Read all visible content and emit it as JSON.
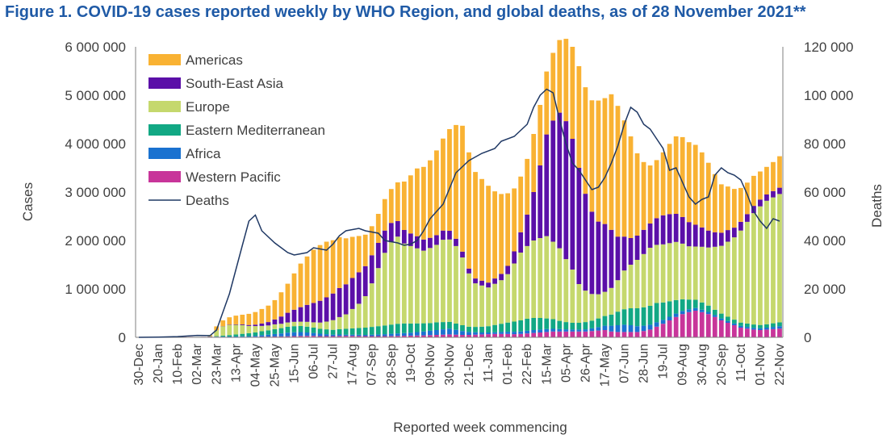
{
  "figure_title": "Figure 1. COVID-19 cases reported weekly by WHO Region, and global deaths, as of 28 November 2021**",
  "chart_data": {
    "type": "bar",
    "stacked": true,
    "secondary_type": "line",
    "xlabel": "Reported week commencing",
    "ylabel": "Cases",
    "y2label": "Deaths",
    "ylim": [
      0,
      6000000
    ],
    "y2lim": [
      0,
      120000
    ],
    "y_ticks": [
      "0",
      "1 000 000",
      "2 000 000",
      "3 000 000",
      "4 000 000",
      "5 000 000",
      "6 000 000"
    ],
    "y2_ticks": [
      "0",
      "20 000",
      "40 000",
      "60 000",
      "80 000",
      "100 000",
      "120 000"
    ],
    "x_tick_labels": [
      "30-Dec",
      "20-Jan",
      "10-Feb",
      "02-Mar",
      "23-Mar",
      "13-Apr",
      "04-May",
      "25-May",
      "15-Jun",
      "06-Jul",
      "27-Jul",
      "17-Aug",
      "07-Sep",
      "28-Sep",
      "19-Oct",
      "09-Nov",
      "30-Nov",
      "21-Dec",
      "11-Jan",
      "01-Feb",
      "22-Feb",
      "15-Mar",
      "05-Apr",
      "26-Apr",
      "17-May",
      "07-Jun",
      "28-Jun",
      "19-Jul",
      "09-Aug",
      "30-Aug",
      "20-Sep",
      "11-Oct",
      "01-Nov",
      "22-Nov"
    ],
    "legend_position": "top-left",
    "grid": false,
    "colors": {
      "Americas": "#F9B233",
      "South-East Asia": "#5B0FA8",
      "Europe": "#C5D86D",
      "Eastern Mediterranean": "#12A884",
      "Africa": "#1A72D0",
      "Western Pacific": "#C8359A",
      "Deaths": "#1F3864"
    },
    "legend": [
      "Americas",
      "South-East Asia",
      "Europe",
      "Eastern Mediterranean",
      "Africa",
      "Western Pacific",
      "Deaths"
    ],
    "weeks": 100,
    "series": [
      {
        "name": "Western Pacific",
        "values": [
          0,
          0,
          2000,
          3000,
          5000,
          10000,
          15000,
          12000,
          10000,
          8000,
          10000,
          15000,
          12000,
          10000,
          8000,
          8000,
          10000,
          10000,
          12000,
          15000,
          15000,
          18000,
          20000,
          22000,
          25000,
          28000,
          30000,
          30000,
          25000,
          25000,
          25000,
          28000,
          30000,
          30000,
          28000,
          25000,
          25000,
          25000,
          25000,
          28000,
          30000,
          32000,
          35000,
          38000,
          40000,
          45000,
          50000,
          55000,
          60000,
          55000,
          50000,
          50000,
          55000,
          60000,
          65000,
          70000,
          70000,
          70000,
          65000,
          70000,
          80000,
          90000,
          100000,
          110000,
          120000,
          120000,
          120000,
          120000,
          120000,
          120000,
          130000,
          140000,
          150000,
          120000,
          110000,
          110000,
          110000,
          110000,
          130000,
          160000,
          220000,
          280000,
          350000,
          420000,
          480000,
          520000,
          550000,
          520000,
          480000,
          420000,
          350000,
          300000,
          250000,
          200000,
          180000,
          160000,
          150000,
          160000,
          170000,
          180000
        ]
      },
      {
        "name": "Africa",
        "values": [
          0,
          0,
          0,
          0,
          0,
          0,
          0,
          0,
          0,
          0,
          0,
          0,
          2000,
          5000,
          8000,
          10000,
          12000,
          15000,
          20000,
          30000,
          40000,
          50000,
          60000,
          75000,
          80000,
          80000,
          70000,
          60000,
          50000,
          40000,
          30000,
          30000,
          25000,
          25000,
          25000,
          25000,
          30000,
          35000,
          40000,
          45000,
          50000,
          55000,
          60000,
          70000,
          80000,
          90000,
          100000,
          110000,
          120000,
          100000,
          80000,
          60000,
          50000,
          40000,
          35000,
          35000,
          40000,
          45000,
          50000,
          50000,
          55000,
          60000,
          60000,
          60000,
          55000,
          50000,
          45000,
          40000,
          40000,
          45000,
          55000,
          70000,
          90000,
          120000,
          140000,
          150000,
          140000,
          120000,
          110000,
          100000,
          90000,
          80000,
          75000,
          70000,
          65000,
          60000,
          55000,
          50000,
          45000,
          40000,
          40000,
          35000,
          35000,
          35000,
          35000,
          35000,
          35000,
          40000,
          45000,
          50000
        ]
      },
      {
        "name": "Eastern Mediterranean",
        "values": [
          0,
          0,
          0,
          0,
          0,
          0,
          0,
          0,
          0,
          0,
          0,
          2000,
          10000,
          20000,
          30000,
          40000,
          50000,
          60000,
          70000,
          80000,
          90000,
          100000,
          110000,
          120000,
          125000,
          125000,
          120000,
          110000,
          100000,
          100000,
          100000,
          110000,
          120000,
          130000,
          140000,
          150000,
          160000,
          170000,
          180000,
          190000,
          200000,
          200000,
          190000,
          180000,
          170000,
          160000,
          160000,
          150000,
          140000,
          130000,
          120000,
          110000,
          110000,
          120000,
          130000,
          150000,
          170000,
          190000,
          210000,
          230000,
          250000,
          250000,
          240000,
          220000,
          200000,
          170000,
          150000,
          140000,
          140000,
          150000,
          160000,
          180000,
          200000,
          230000,
          280000,
          320000,
          350000,
          370000,
          380000,
          390000,
          400000,
          360000,
          320000,
          280000,
          240000,
          200000,
          170000,
          150000,
          130000,
          110000,
          100000,
          90000,
          80000,
          70000,
          70000,
          70000,
          70000,
          70000,
          75000,
          80000
        ]
      },
      {
        "name": "Europe",
        "values": [
          0,
          0,
          0,
          0,
          0,
          0,
          0,
          0,
          0,
          0,
          0,
          10000,
          120000,
          190000,
          210000,
          200000,
          180000,
          150000,
          130000,
          110000,
          100000,
          100000,
          90000,
          90000,
          90000,
          90000,
          100000,
          110000,
          130000,
          160000,
          200000,
          250000,
          300000,
          400000,
          500000,
          650000,
          900000,
          1200000,
          1500000,
          1700000,
          1800000,
          1650000,
          1600000,
          1550000,
          1500000,
          1550000,
          1600000,
          1700000,
          1700000,
          1600000,
          1400000,
          1100000,
          900000,
          850000,
          800000,
          850000,
          900000,
          1000000,
          1200000,
          1400000,
          1500000,
          1600000,
          1650000,
          1700000,
          1600000,
          1500000,
          1300000,
          1100000,
          800000,
          650000,
          550000,
          500000,
          500000,
          550000,
          650000,
          800000,
          900000,
          1000000,
          1100000,
          1200000,
          1200000,
          1200000,
          1200000,
          1200000,
          1150000,
          1100000,
          1100000,
          1150000,
          1200000,
          1300000,
          1400000,
          1550000,
          1700000,
          1900000,
          2100000,
          2300000,
          2450000,
          2550000,
          2600000,
          2650000
        ]
      },
      {
        "name": "South-East Asia",
        "values": [
          0,
          0,
          0,
          0,
          0,
          0,
          0,
          0,
          0,
          0,
          0,
          0,
          2000,
          5000,
          8000,
          10000,
          15000,
          20000,
          30000,
          50000,
          70000,
          100000,
          150000,
          200000,
          250000,
          300000,
          350000,
          400000,
          450000,
          500000,
          550000,
          600000,
          620000,
          640000,
          650000,
          620000,
          580000,
          520000,
          460000,
          400000,
          320000,
          280000,
          260000,
          250000,
          230000,
          210000,
          200000,
          190000,
          180000,
          150000,
          120000,
          100000,
          100000,
          100000,
          100000,
          110000,
          130000,
          170000,
          250000,
          420000,
          650000,
          1000000,
          1500000,
          2100000,
          2500000,
          2800000,
          2850000,
          2700000,
          2400000,
          2000000,
          1700000,
          1500000,
          1400000,
          1200000,
          900000,
          700000,
          550000,
          500000,
          500000,
          500000,
          550000,
          600000,
          600000,
          580000,
          550000,
          500000,
          450000,
          400000,
          350000,
          300000,
          270000,
          240000,
          200000,
          180000,
          160000,
          150000,
          140000,
          130000,
          130000,
          130000
        ]
      },
      {
        "name": "Americas",
        "values": [
          0,
          0,
          0,
          0,
          0,
          0,
          0,
          0,
          0,
          0,
          0,
          20000,
          80000,
          120000,
          150000,
          180000,
          200000,
          230000,
          260000,
          300000,
          340000,
          400000,
          500000,
          600000,
          750000,
          900000,
          1000000,
          1100000,
          1150000,
          1150000,
          1100000,
          1050000,
          950000,
          850000,
          750000,
          650000,
          600000,
          600000,
          650000,
          700000,
          800000,
          1000000,
          1200000,
          1400000,
          1500000,
          1600000,
          1750000,
          1900000,
          2100000,
          2350000,
          2600000,
          2400000,
          2200000,
          2100000,
          2000000,
          1800000,
          1650000,
          1500000,
          1300000,
          1150000,
          1150000,
          1200000,
          1250000,
          1300000,
          1400000,
          1500000,
          1700000,
          1900000,
          2100000,
          2200000,
          2300000,
          2500000,
          2600000,
          2800000,
          2700000,
          2400000,
          2100000,
          1700000,
          1400000,
          1200000,
          1200000,
          1300000,
          1450000,
          1600000,
          1650000,
          1650000,
          1650000,
          1550000,
          1400000,
          1200000,
          1000000,
          900000,
          800000,
          700000,
          650000,
          620000,
          580000,
          570000,
          600000,
          650000
        ]
      }
    ],
    "deaths": [
      0,
      0,
      0,
      0,
      0,
      0,
      0,
      0,
      0,
      0,
      0,
      0,
      0,
      0,
      0,
      0,
      0,
      0,
      0,
      0,
      0,
      0,
      0,
      0,
      0,
      0,
      0,
      0,
      0,
      0,
      0,
      0,
      0,
      0,
      0,
      0,
      0,
      0,
      0,
      0,
      0,
      0,
      0,
      0,
      0,
      0,
      0,
      0,
      0,
      0,
      0,
      0,
      0,
      0,
      0,
      0,
      0,
      0,
      0,
      0,
      0,
      0,
      0,
      0,
      0,
      0,
      0,
      0,
      0,
      0,
      0,
      0,
      0,
      0,
      0,
      0,
      0,
      0,
      0,
      0,
      0,
      0,
      0,
      0,
      0,
      0,
      0,
      0,
      0,
      0,
      0,
      0,
      0,
      0,
      0,
      0,
      0,
      0,
      0,
      0
    ],
    "deaths_points": [
      [
        0,
        0
      ],
      [
        3,
        100
      ],
      [
        6,
        300
      ],
      [
        9,
        800
      ],
      [
        11,
        700
      ],
      [
        12,
        3000
      ],
      [
        14,
        18000
      ],
      [
        16,
        38000
      ],
      [
        17,
        48000
      ],
      [
        18,
        50500
      ],
      [
        19,
        44000
      ],
      [
        21,
        39000
      ],
      [
        23,
        35000
      ],
      [
        24,
        34000
      ],
      [
        26,
        35000
      ],
      [
        27,
        37000
      ],
      [
        29,
        36000
      ],
      [
        30,
        38500
      ],
      [
        31,
        42000
      ],
      [
        32,
        44000
      ],
      [
        34,
        45000
      ],
      [
        35,
        44000
      ],
      [
        37,
        43000
      ],
      [
        38,
        40000
      ],
      [
        40,
        39000
      ],
      [
        41,
        38000
      ],
      [
        42,
        38500
      ],
      [
        43,
        40000
      ],
      [
        44,
        44000
      ],
      [
        45,
        49000
      ],
      [
        47,
        55000
      ],
      [
        49,
        68000
      ],
      [
        51,
        73000
      ],
      [
        53,
        76000
      ],
      [
        55,
        78000
      ],
      [
        56,
        81000
      ],
      [
        58,
        83000
      ],
      [
        60,
        88000
      ],
      [
        61,
        95000
      ],
      [
        62,
        100000
      ],
      [
        63,
        102500
      ],
      [
        64,
        101000
      ],
      [
        65,
        90000
      ],
      [
        66,
        80000
      ],
      [
        67,
        72000
      ],
      [
        68,
        69000
      ],
      [
        69,
        65000
      ],
      [
        70,
        61000
      ],
      [
        71,
        62000
      ],
      [
        72,
        66000
      ],
      [
        73,
        72000
      ],
      [
        74,
        79000
      ],
      [
        75,
        88000
      ],
      [
        76,
        95000
      ],
      [
        77,
        93000
      ],
      [
        78,
        88000
      ],
      [
        79,
        86000
      ],
      [
        80,
        82000
      ],
      [
        81,
        78000
      ],
      [
        82,
        69000
      ],
      [
        83,
        70000
      ],
      [
        84,
        64000
      ],
      [
        85,
        58000
      ],
      [
        86,
        55000
      ],
      [
        87,
        57000
      ],
      [
        88,
        58000
      ],
      [
        89,
        67000
      ],
      [
        90,
        70000
      ],
      [
        91,
        68000
      ],
      [
        92,
        67000
      ],
      [
        93,
        65000
      ],
      [
        94,
        59000
      ],
      [
        95,
        52000
      ],
      [
        96,
        48000
      ],
      [
        97,
        45000
      ],
      [
        98,
        49000
      ],
      [
        99,
        48000
      ]
    ]
  }
}
